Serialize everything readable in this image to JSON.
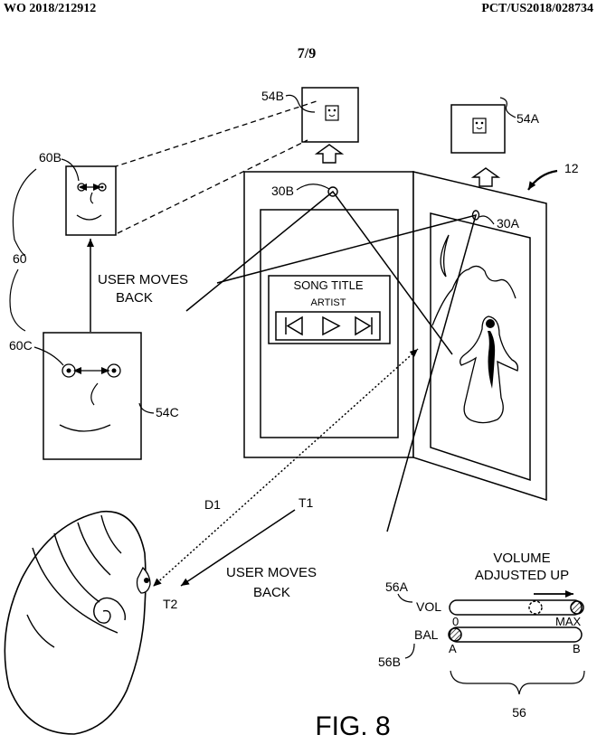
{
  "header": {
    "pub_number": "WO 2018/212912",
    "app_number": "PCT/US2018/028734",
    "sheet": "7/9"
  },
  "labels": {
    "ref_54B": "54B",
    "ref_54A": "54A",
    "ref_60B": "60B",
    "ref_60": "60",
    "ref_60C": "60C",
    "ref_54C": "54C",
    "ref_30B": "30B",
    "ref_30A": "30A",
    "ref_12": "12",
    "user_moves_back_1a": "USER MOVES",
    "user_moves_back_1b": "BACK",
    "user_moves_back_2a": "USER MOVES",
    "user_moves_back_2b": "BACK",
    "d1": "D1",
    "t1": "T1",
    "t2": "T2",
    "ref_56A": "56A",
    "ref_56B": "56B",
    "ref_56": "56",
    "vol": "VOL",
    "bal": "BAL",
    "vol_min": "0",
    "vol_max": "MAX",
    "bal_a": "A",
    "bal_b": "B",
    "volume_adjusted_a": "VOLUME",
    "volume_adjusted_b": "ADJUSTED UP",
    "figure": "FIG. 8"
  },
  "player": {
    "song_title": "SONG TITLE",
    "artist": "ARTIST"
  }
}
